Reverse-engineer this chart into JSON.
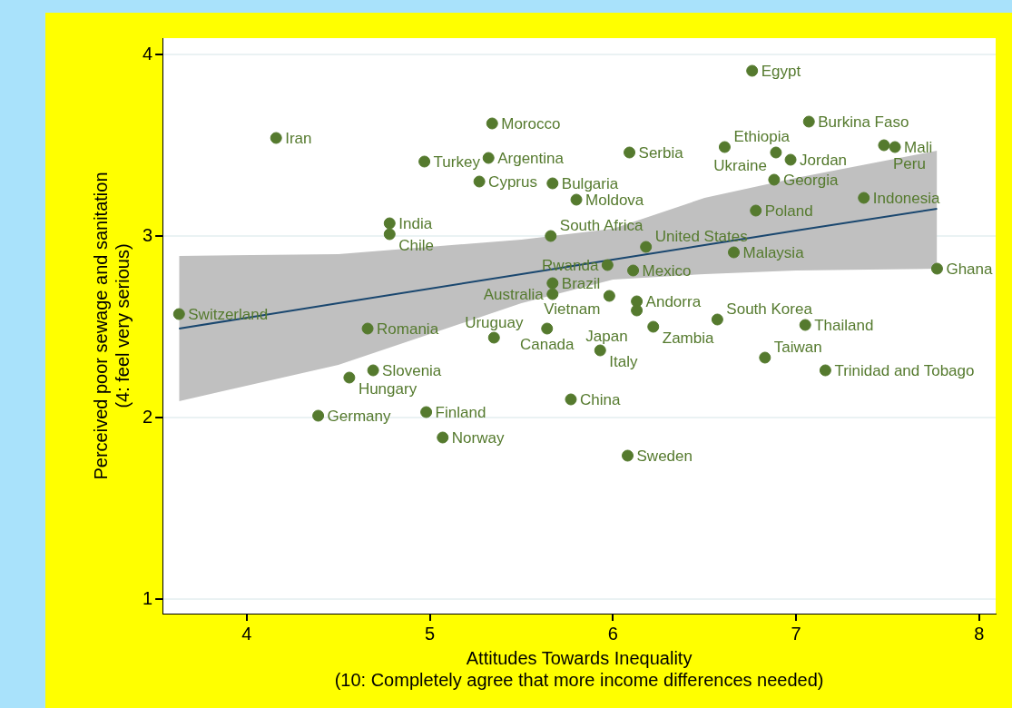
{
  "chart_data": {
    "type": "scatter",
    "xlabel": "Attitudes Towards Inequality\n(10: Completely agree that more income differences needed)",
    "ylabel": "Perceived poor sewage and sanitation\n(4: feel very serious)",
    "xlim": [
      3.54,
      8.09
    ],
    "ylim": [
      0.92,
      4.09
    ],
    "xticks": [
      4,
      5,
      6,
      7,
      8
    ],
    "yticks": [
      1,
      2,
      3,
      4
    ],
    "grid": "y",
    "legend": false,
    "marker": "circle",
    "series": [
      {
        "type": "line",
        "marker": "none",
        "color": "#1a476f",
        "x": [
          3.63,
          4.5,
          5.5,
          6.0,
          6.5,
          7.0,
          7.77
        ],
        "values": [
          2.49,
          2.63,
          2.79,
          2.87,
          2.95,
          3.03,
          3.15
        ],
        "lower": [
          2.09,
          2.29,
          2.63,
          2.76,
          2.79,
          2.81,
          2.82
        ],
        "upper": [
          2.89,
          2.9,
          2.98,
          3.04,
          3.21,
          3.32,
          3.47
        ]
      },
      {
        "color": "#557a2e",
        "x": [
          4.16,
          5.34,
          4.97,
          5.32,
          5.27,
          5.67,
          5.8,
          4.78,
          4.78,
          5.66,
          6.76,
          7.07,
          6.09,
          6.61,
          6.89,
          6.97,
          7.48,
          7.54,
          6.88,
          7.37,
          6.78,
          6.18,
          6.66,
          5.97,
          6.11,
          7.77,
          5.67,
          5.67,
          5.98,
          6.13,
          6.13,
          6.22,
          6.57,
          7.05,
          5.64,
          5.93,
          6.83,
          7.16,
          5.77,
          6.08,
          3.63,
          4.66,
          5.35,
          4.69,
          4.56,
          4.39,
          4.98,
          5.07
        ],
        "values": [
          3.54,
          3.62,
          3.41,
          3.43,
          3.3,
          3.29,
          3.2,
          3.07,
          3.01,
          3.0,
          3.91,
          3.63,
          3.46,
          3.49,
          3.46,
          3.42,
          3.5,
          3.49,
          3.31,
          3.21,
          3.14,
          2.94,
          2.91,
          2.84,
          2.81,
          2.82,
          2.74,
          2.68,
          2.67,
          2.64,
          2.59,
          2.5,
          2.54,
          2.51,
          2.49,
          2.37,
          2.33,
          2.26,
          2.1,
          1.79,
          2.57,
          2.49,
          2.44,
          2.26,
          2.22,
          2.01,
          2.03,
          1.89
        ]
      }
    ],
    "annotations": [
      {
        "text": "Iran",
        "x": 4.16,
        "y": 3.54
      },
      {
        "text": "Morocco",
        "x": 5.34,
        "y": 3.62
      },
      {
        "text": "Turkey",
        "x": 4.97,
        "y": 3.41
      },
      {
        "text": "Argentina",
        "x": 5.32,
        "y": 3.43
      },
      {
        "text": "Cyprus",
        "x": 5.27,
        "y": 3.3
      },
      {
        "text": "Bulgaria",
        "x": 5.67,
        "y": 3.29
      },
      {
        "text": "Moldova",
        "x": 5.8,
        "y": 3.2
      },
      {
        "text": "India",
        "x": 4.78,
        "y": 3.07
      },
      {
        "text": "Chile",
        "x": 4.78,
        "y": 3.01
      },
      {
        "text": "South Africa",
        "x": 5.66,
        "y": 3.0
      },
      {
        "text": "Egypt",
        "x": 6.76,
        "y": 3.91
      },
      {
        "text": "Burkina Faso",
        "x": 7.07,
        "y": 3.63
      },
      {
        "text": "Serbia",
        "x": 6.09,
        "y": 3.46
      },
      {
        "text": "Ethiopia",
        "x": 6.61,
        "y": 3.49
      },
      {
        "text": "Ukraine",
        "x": 6.89,
        "y": 3.46
      },
      {
        "text": "Jordan",
        "x": 6.97,
        "y": 3.42
      },
      {
        "text": "Peru",
        "x": 7.48,
        "y": 3.5
      },
      {
        "text": "Mali",
        "x": 7.54,
        "y": 3.49
      },
      {
        "text": "Georgia",
        "x": 6.88,
        "y": 3.31
      },
      {
        "text": "Indonesia",
        "x": 7.37,
        "y": 3.21
      },
      {
        "text": "Poland",
        "x": 6.78,
        "y": 3.14
      },
      {
        "text": "United States",
        "x": 6.18,
        "y": 2.94
      },
      {
        "text": "Malaysia",
        "x": 6.66,
        "y": 2.91
      },
      {
        "text": "Rwanda",
        "x": 5.97,
        "y": 2.84
      },
      {
        "text": "Mexico",
        "x": 6.11,
        "y": 2.81
      },
      {
        "text": "Ghana",
        "x": 7.77,
        "y": 2.82
      },
      {
        "text": "Brazil",
        "x": 5.67,
        "y": 2.74
      },
      {
        "text": "Australia",
        "x": 5.67,
        "y": 2.68
      },
      {
        "text": "Vietnam",
        "x": 5.98,
        "y": 2.67
      },
      {
        "text": "Andorra",
        "x": 6.13,
        "y": 2.64
      },
      {
        "text": "Japan",
        "x": 6.13,
        "y": 2.59
      },
      {
        "text": "Zambia",
        "x": 6.22,
        "y": 2.5
      },
      {
        "text": "South Korea",
        "x": 6.57,
        "y": 2.54
      },
      {
        "text": "Thailand",
        "x": 7.05,
        "y": 2.51
      },
      {
        "text": "Canada",
        "x": 5.64,
        "y": 2.49
      },
      {
        "text": "Italy",
        "x": 5.93,
        "y": 2.37
      },
      {
        "text": "Taiwan",
        "x": 6.83,
        "y": 2.33
      },
      {
        "text": "Trinidad and Tobago",
        "x": 7.16,
        "y": 2.26
      },
      {
        "text": "China",
        "x": 5.77,
        "y": 2.1
      },
      {
        "text": "Sweden",
        "x": 6.08,
        "y": 1.79
      },
      {
        "text": "Switzerland",
        "x": 3.63,
        "y": 2.57
      },
      {
        "text": "Romania",
        "x": 4.66,
        "y": 2.49
      },
      {
        "text": "Uruguay",
        "x": 5.35,
        "y": 2.44
      },
      {
        "text": "Slovenia",
        "x": 4.69,
        "y": 2.26
      },
      {
        "text": "Hungary",
        "x": 4.56,
        "y": 2.22
      },
      {
        "text": "Germany",
        "x": 4.39,
        "y": 2.01
      },
      {
        "text": "Finland",
        "x": 4.98,
        "y": 2.03
      },
      {
        "text": "Norway",
        "x": 5.07,
        "y": 1.89
      }
    ]
  }
}
